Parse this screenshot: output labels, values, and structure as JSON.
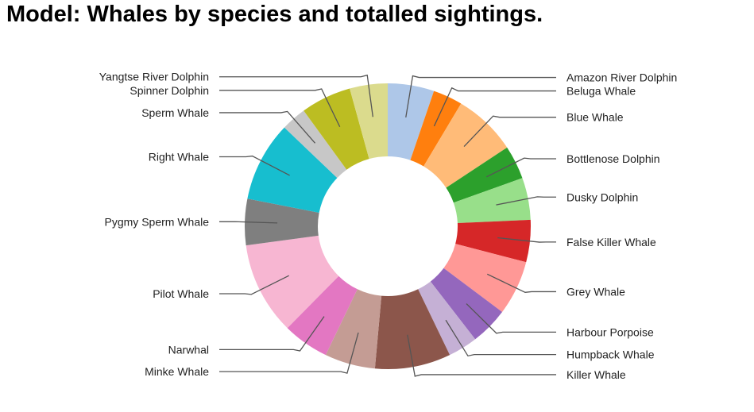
{
  "chart_data": {
    "type": "pie",
    "title": "Model: Whales by species and totalled sightings.",
    "donut": true,
    "categories": [
      "Amazon River Dolphin",
      "Beluga Whale",
      "Blue Whale",
      "Bottlenose Dolphin",
      "Dusky Dolphin",
      "False Killer Whale",
      "Grey Whale",
      "Harbour Porpoise",
      "Humpback Whale",
      "Killer Whale",
      "Minke Whale",
      "Narwhal",
      "Pilot Whale",
      "Pygmy Sperm Whale",
      "Right Whale",
      "Sperm Whale",
      "Spinner Dolphin",
      "Yangtse River Dolphin"
    ],
    "values": [
      5.5,
      3.5,
      7.5,
      4.0,
      5.0,
      5.0,
      6.5,
      4.5,
      3.5,
      9.0,
      6.0,
      5.5,
      11.0,
      5.5,
      9.5,
      3.0,
      6.0,
      4.5
    ],
    "colors": [
      "#aec7e8",
      "#ff7f0e",
      "#ffbb78",
      "#2ca02c",
      "#98df8a",
      "#d62728",
      "#ff9896",
      "#9467bd",
      "#c5b0d5",
      "#8c564b",
      "#c49c94",
      "#e377c2",
      "#f7b6d2",
      "#7f7f7f",
      "#17becf",
      "#c7c7c7",
      "#bcbd22",
      "#dbdb8d"
    ],
    "legend": "none",
    "labels": "outside-with-leader-lines",
    "leader_line_color": "#555555"
  }
}
